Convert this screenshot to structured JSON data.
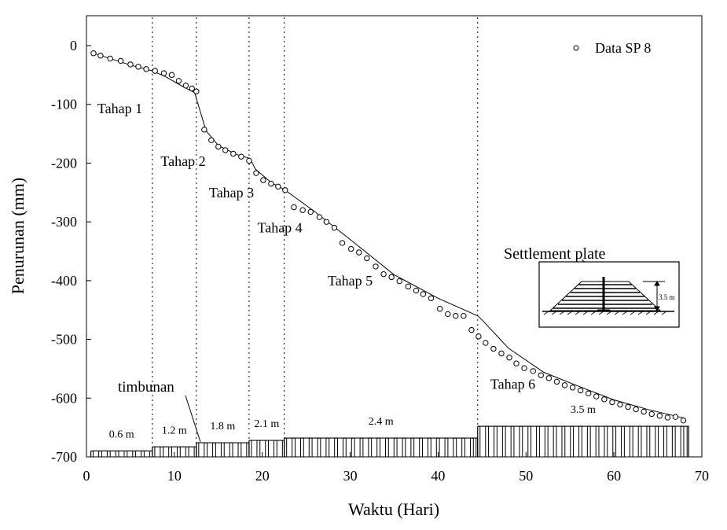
{
  "chart_data": {
    "type": "scatter",
    "xlabel": "Waktu (Hari)",
    "ylabel": "Penurunan (mm)",
    "xlim": [
      0,
      70
    ],
    "ylim": [
      -700,
      50
    ],
    "xticks": [
      0,
      10,
      20,
      30,
      40,
      50,
      60,
      70
    ],
    "yticks": [
      0,
      -100,
      -200,
      -300,
      -400,
      -500,
      -600,
      -700
    ],
    "grid": false,
    "legend": {
      "placement": "top-right",
      "label": "Data SP 8"
    },
    "series": [
      {
        "name": "Data SP 8",
        "marker": "circle",
        "x": [
          0.8,
          1.6,
          2.7,
          3.9,
          5.0,
          5.9,
          6.8,
          7.8,
          8.8,
          9.7,
          10.5,
          11.3,
          12.0,
          12.5,
          13.4,
          14.2,
          15.0,
          15.8,
          16.7,
          17.6,
          18.5,
          19.3,
          20.1,
          21.0,
          21.8,
          22.6,
          23.6,
          24.6,
          25.5,
          26.5,
          27.3,
          28.2,
          29.1,
          30.1,
          31.0,
          31.9,
          32.9,
          33.8,
          34.7,
          35.6,
          36.6,
          37.5,
          38.3,
          39.2,
          40.2,
          41.1,
          42.0,
          42.9,
          43.8,
          44.6,
          45.4,
          46.3,
          47.2,
          48.1,
          48.9,
          49.8,
          50.8,
          51.7,
          52.6,
          53.5,
          54.4,
          55.3,
          56.2,
          57.1,
          58.0,
          58.9,
          59.8,
          60.7,
          61.6,
          62.5,
          63.4,
          64.3,
          65.2,
          66.1,
          67.0,
          67.9
        ],
        "y": [
          -13,
          -17,
          -22,
          -26,
          -32,
          -36,
          -40,
          -43,
          -47,
          -50,
          -60,
          -68,
          -73,
          -78,
          -143,
          -161,
          -172,
          -178,
          -184,
          -189,
          -196,
          -217,
          -229,
          -235,
          -240,
          -246,
          -275,
          -280,
          -283,
          -292,
          -300,
          -310,
          -336,
          -346,
          -352,
          -362,
          -376,
          -389,
          -394,
          -401,
          -410,
          -417,
          -423,
          -430,
          -448,
          -457,
          -460,
          -460,
          -484,
          -495,
          -506,
          -516,
          -524,
          -531,
          -541,
          -549,
          -554,
          -561,
          -566,
          -572,
          -578,
          -582,
          -587,
          -592,
          -597,
          -602,
          -607,
          -611,
          -615,
          -619,
          -623,
          -627,
          -630,
          -633,
          -632,
          -638
        ]
      },
      {
        "name": "",
        "type": "line",
        "x": [
          0.8,
          5,
          7.5,
          9,
          11,
          12.3,
          12.8,
          13.6,
          15,
          17,
          18.6,
          19.2,
          21,
          22.5,
          26,
          30,
          35,
          40,
          44.5,
          45.2,
          48,
          52,
          56,
          60,
          64,
          68
        ],
        "y": [
          -13,
          -33,
          -43,
          -53,
          -70,
          -80,
          -105,
          -145,
          -170,
          -185,
          -192,
          -210,
          -233,
          -245,
          -283,
          -330,
          -390,
          -430,
          -460,
          -470,
          -515,
          -556,
          -580,
          -603,
          -620,
          -634
        ]
      }
    ],
    "stage_lines_x": [
      7.5,
      12.5,
      18.5,
      22.5,
      44.5
    ],
    "stage_labels": [
      {
        "text": "Tahap 1",
        "x": 3.8,
        "y": -115
      },
      {
        "text": "Tahap 2",
        "x": 11.0,
        "y": -205
      },
      {
        "text": "Tahap 3",
        "x": 16.5,
        "y": -258
      },
      {
        "text": "Tahap 4",
        "x": 22.0,
        "y": -318
      },
      {
        "text": "Tahap 5",
        "x": 30.0,
        "y": -408
      },
      {
        "text": "Tahap 6",
        "x": 48.5,
        "y": -584
      }
    ],
    "embankment": {
      "label": "timbunan",
      "segments": [
        {
          "x0": 0.5,
          "x1": 7.5,
          "top": -690,
          "label": "0.6 m"
        },
        {
          "x0": 7.5,
          "x1": 12.5,
          "top": -683,
          "label": "1.2 m"
        },
        {
          "x0": 12.5,
          "x1": 18.5,
          "top": -676,
          "label": "1.8 m"
        },
        {
          "x0": 18.5,
          "x1": 22.5,
          "top": -672,
          "label": "2.1 m"
        },
        {
          "x0": 22.5,
          "x1": 44.5,
          "top": -668,
          "label": "2.4 m"
        },
        {
          "x0": 44.5,
          "x1": 68.5,
          "top": -648,
          "label": "3.5 m"
        }
      ]
    },
    "inset": {
      "title": "Settlement plate",
      "dimension": "3.5 m"
    }
  }
}
